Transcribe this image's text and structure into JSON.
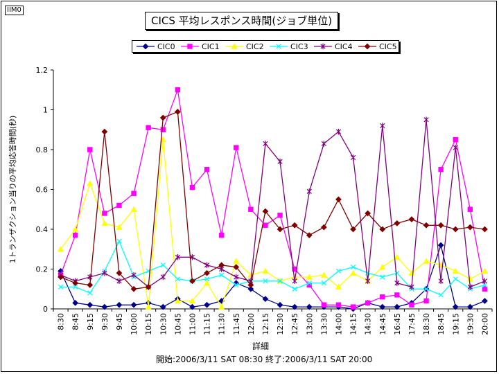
{
  "corner_label": "IIM0",
  "chart_data": {
    "type": "line",
    "title": "CICS 平均レスポンス時間(ジョブ単位)",
    "ylabel": "1トランザクション当りの平均応答時間(秒)",
    "xlabel": "詳細",
    "footer": "開始:2006/3/11 SAT 08:30 終了:2006/3/11 SAT 20:00",
    "ylim": [
      0,
      1.2
    ],
    "y_ticks": [
      "0",
      "0.2",
      "0.4",
      "0.6",
      "0.8",
      "1",
      "1.2"
    ],
    "grid": false,
    "legend_position": "top",
    "categories": [
      "8:30",
      "8:45",
      "9:15",
      "9:30",
      "9:45",
      "10:00",
      "10:15",
      "10:30",
      "10:45",
      "11:00",
      "11:15",
      "11:30",
      "11:45",
      "12:00",
      "12:15",
      "12:30",
      "12:45",
      "13:00",
      "13:30",
      "14:00",
      "14:15",
      "14:30",
      "14:45",
      "16:45",
      "17:45",
      "18:30",
      "18:45",
      "19:15",
      "19:30",
      "20:00"
    ],
    "series": [
      {
        "name": "CIC0",
        "color": "#00008b",
        "marker": "diamond",
        "values": [
          0.19,
          0.03,
          0.02,
          0.01,
          0.02,
          0.02,
          0.03,
          0.01,
          0.05,
          0.01,
          0.02,
          0.04,
          0.13,
          0.1,
          0.05,
          0.02,
          0.01,
          0.01,
          0.01,
          0.01,
          0.0,
          0.03,
          0.01,
          0.01,
          0.03,
          0.1,
          0.32,
          0.01,
          0.01,
          0.04
        ]
      },
      {
        "name": "CIC1",
        "color": "#ff00ff",
        "marker": "square",
        "values": [
          0.17,
          0.37,
          0.8,
          0.48,
          0.52,
          0.58,
          0.91,
          0.9,
          1.1,
          0.61,
          0.7,
          0.37,
          0.81,
          0.5,
          0.42,
          0.47,
          0.2,
          0.12,
          0.02,
          0.02,
          0.01,
          0.03,
          0.06,
          0.07,
          0.02,
          0.04,
          0.7,
          0.85,
          0.5,
          0.1
        ]
      },
      {
        "name": "CIC2",
        "color": "#ffff00",
        "marker": "triangle",
        "values": [
          0.3,
          0.4,
          0.63,
          0.43,
          0.41,
          0.5,
          0.01,
          0.85,
          0.04,
          0.04,
          0.13,
          0.01,
          0.24,
          0.17,
          0.19,
          0.14,
          0.16,
          0.16,
          0.17,
          0.11,
          0.18,
          0.14,
          0.21,
          0.26,
          0.18,
          0.24,
          0.22,
          0.19,
          0.15,
          0.19
        ]
      },
      {
        "name": "CIC3",
        "color": "#00ffff",
        "marker": "x",
        "values": [
          0.11,
          0.11,
          0.08,
          0.19,
          0.34,
          0.16,
          0.19,
          0.22,
          0.15,
          0.14,
          0.15,
          0.17,
          0.12,
          0.14,
          0.14,
          0.14,
          0.1,
          0.13,
          0.13,
          0.19,
          0.21,
          0.18,
          0.16,
          0.18,
          0.1,
          0.1,
          0.07,
          0.15,
          0.1,
          0.12
        ]
      },
      {
        "name": "CIC4",
        "color": "#800080",
        "marker": "star",
        "values": [
          0.17,
          0.14,
          0.16,
          0.18,
          0.14,
          0.17,
          0.11,
          0.16,
          0.26,
          0.26,
          0.22,
          0.2,
          0.16,
          0.14,
          0.83,
          0.74,
          0.14,
          0.59,
          0.83,
          0.89,
          0.76,
          0.14,
          0.92,
          0.13,
          0.11,
          0.95,
          0.14,
          0.81,
          0.11,
          0.14
        ]
      },
      {
        "name": "CIC5",
        "color": "#800000",
        "marker": "diamond",
        "values": [
          0.16,
          0.13,
          0.12,
          0.89,
          0.18,
          0.1,
          0.11,
          0.96,
          0.99,
          0.14,
          0.18,
          0.22,
          0.21,
          0.12,
          0.49,
          0.4,
          0.42,
          0.37,
          0.41,
          0.55,
          0.4,
          0.48,
          0.4,
          0.43,
          0.45,
          0.42,
          0.42,
          0.4,
          0.41,
          0.4
        ]
      }
    ]
  }
}
